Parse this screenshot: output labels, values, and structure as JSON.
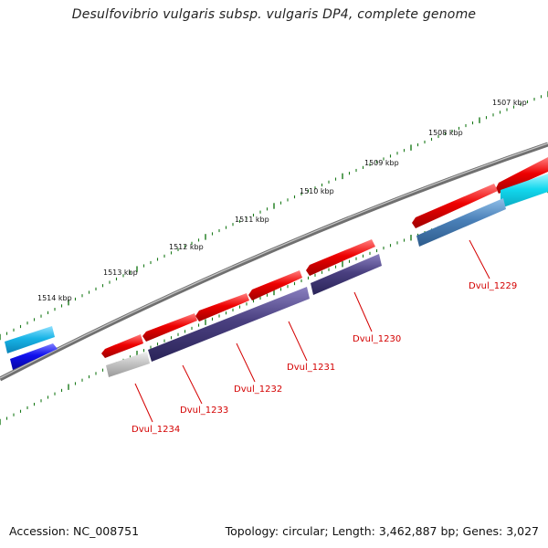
{
  "title": "Desulfovibrio vulgaris subsp. vulgaris DP4, complete genome",
  "footer": {
    "accession": "Accession: NC_008751",
    "summary": "Topology: circular; Length: 3,462,887 bp; Genes: 3,027"
  },
  "ticks": [
    {
      "label": "1507 kbp"
    },
    {
      "label": "1508 kbp"
    },
    {
      "label": "1509 kbp"
    },
    {
      "label": "1510 kbp"
    },
    {
      "label": "1511 kbp"
    },
    {
      "label": "1512 kbp"
    },
    {
      "label": "1513 kbp"
    },
    {
      "label": "1514 kbp"
    }
  ],
  "genes": [
    {
      "label": "Dvul_1229"
    },
    {
      "label": "Dvul_1230"
    },
    {
      "label": "Dvul_1231"
    },
    {
      "label": "Dvul_1232"
    },
    {
      "label": "Dvul_1233"
    },
    {
      "label": "Dvul_1234"
    }
  ],
  "colors": {
    "red": "#ee0000",
    "navy": "#4a4080",
    "steel": "#4a80b8",
    "cyan": "#12d8ee",
    "sky": "#18b4e6",
    "blue": "#1010ee",
    "grey": "#c4c4c4",
    "backbone": "#808080",
    "tick": "#1a7a1a",
    "label": "#d40000"
  }
}
